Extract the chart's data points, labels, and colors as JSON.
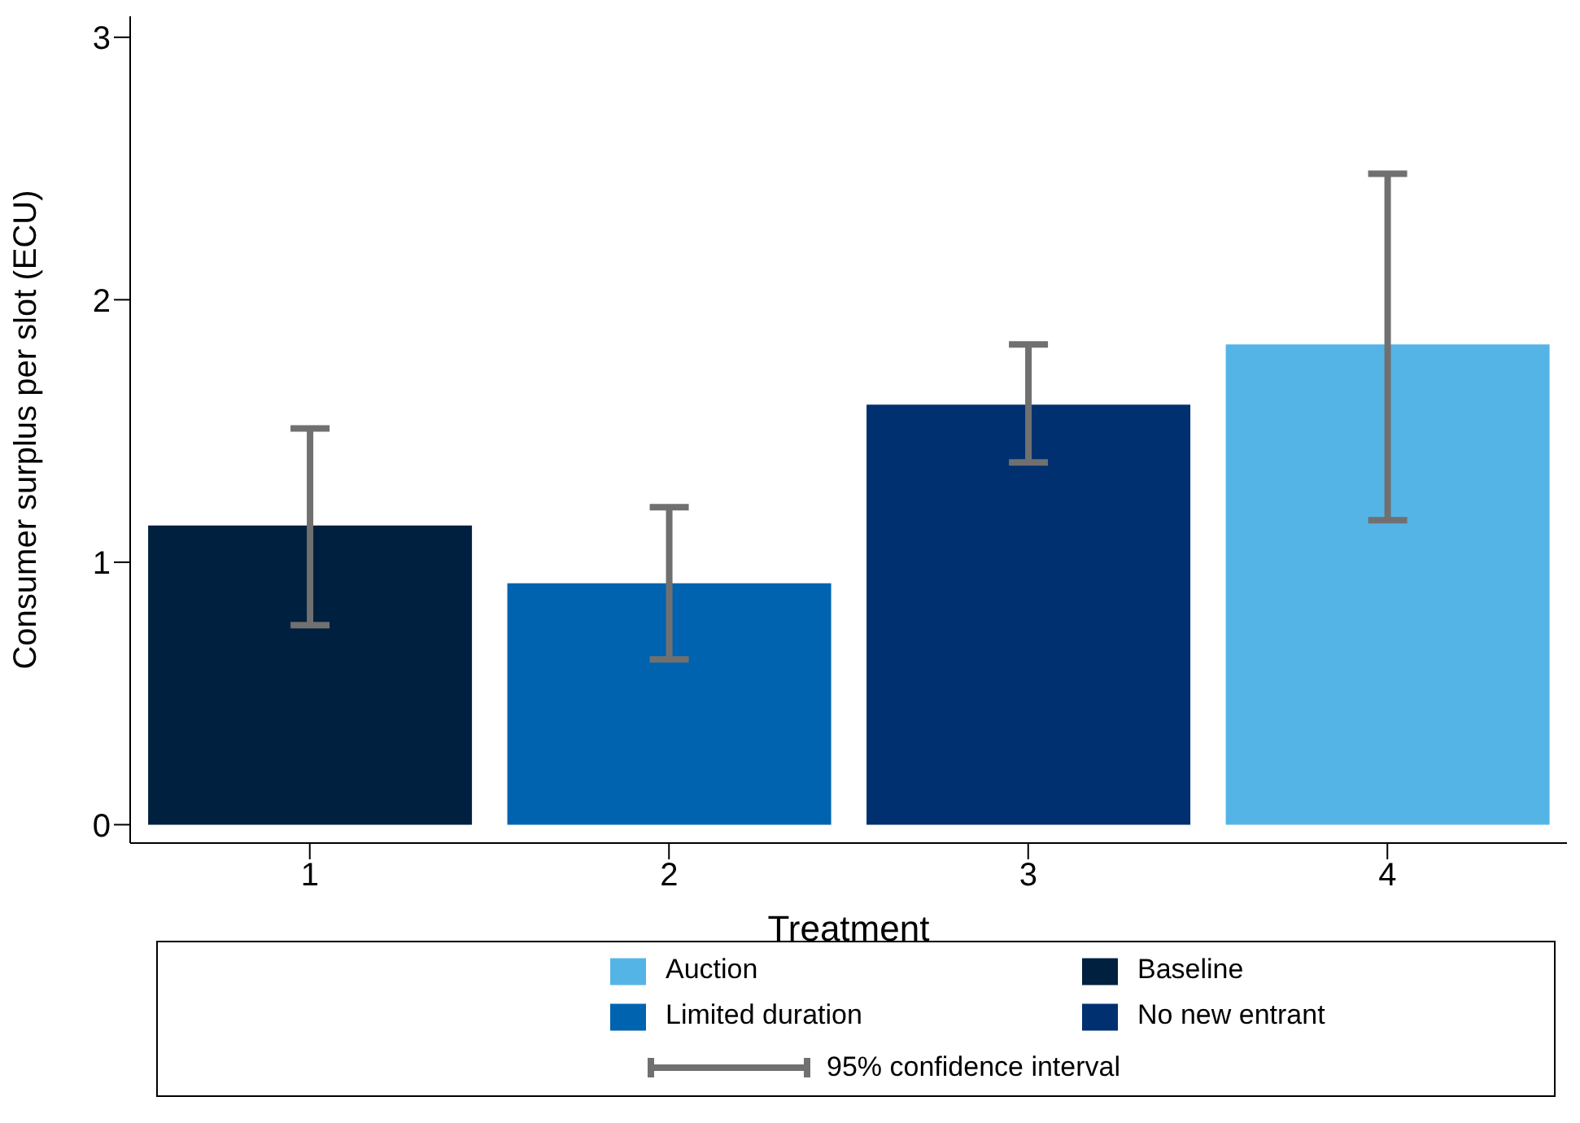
{
  "chart_data": {
    "type": "bar",
    "xlabel": "Treatment",
    "ylabel": "Consumer surplus per slot (ECU)",
    "categories": [
      "1",
      "2",
      "3",
      "4"
    ],
    "series": [
      {
        "name": "Baseline",
        "color": "#00203f",
        "values": [
          1.14,
          null,
          null,
          null
        ],
        "errors": [
          [
            0.76,
            1.51
          ],
          null,
          null,
          null
        ]
      },
      {
        "name": "Limited duration",
        "color": "#0063b0",
        "values": [
          null,
          0.92,
          null,
          null
        ],
        "errors": [
          null,
          [
            0.63,
            1.21
          ],
          null,
          null
        ]
      },
      {
        "name": "No new entrant",
        "color": "#003070",
        "values": [
          null,
          null,
          1.6,
          null
        ],
        "errors": [
          null,
          null,
          [
            1.38,
            1.83
          ],
          null
        ]
      },
      {
        "name": "Auction",
        "color": "#55b4e6",
        "values": [
          null,
          null,
          null,
          1.83
        ],
        "errors": [
          null,
          null,
          null,
          [
            1.16,
            2.48
          ]
        ]
      }
    ],
    "ylim": [
      -0.07,
      3.08
    ],
    "yticks": [
      0,
      1,
      2,
      3
    ],
    "legend": "bottom",
    "annotations": [
      "95% confidence interval"
    ]
  }
}
